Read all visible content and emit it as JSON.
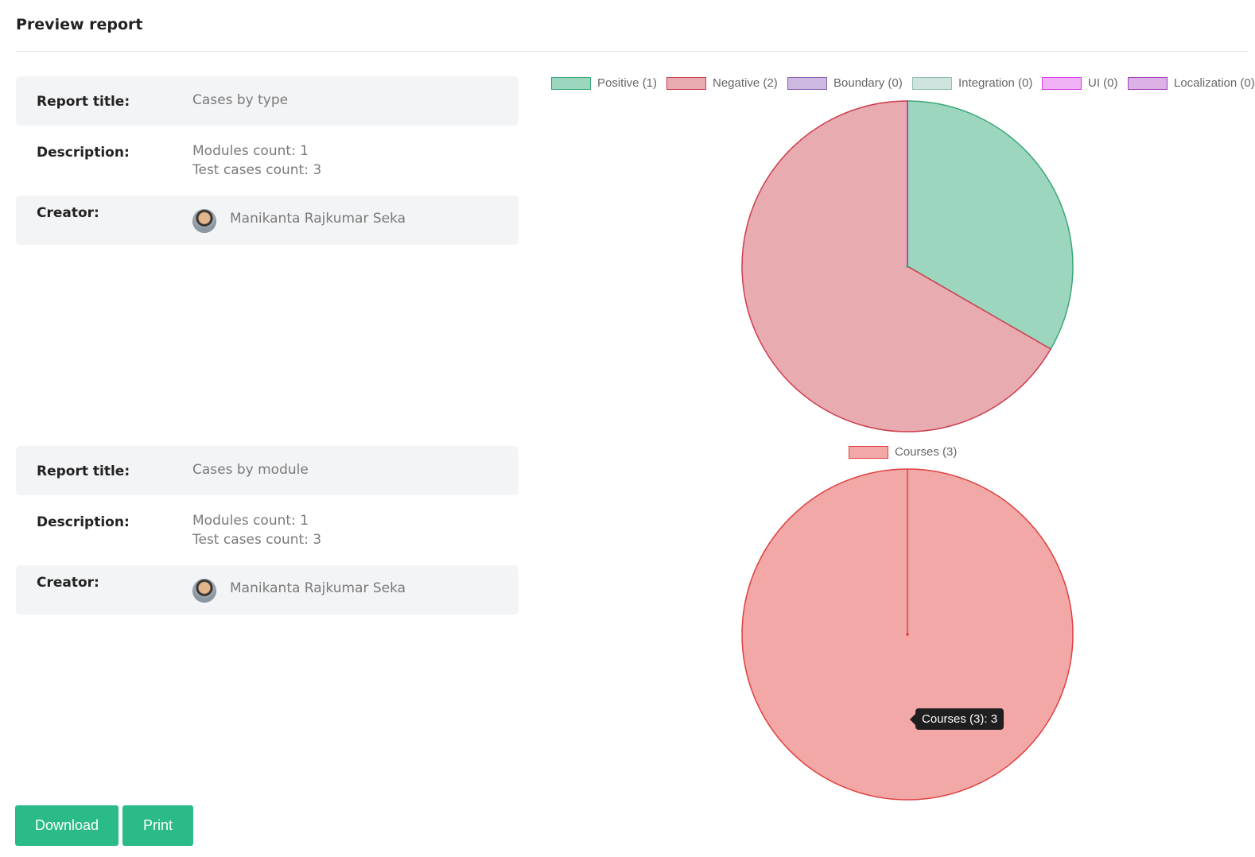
{
  "header": {
    "title": "Preview report"
  },
  "reports": [
    {
      "title_label": "Report title:",
      "title_value": "Cases by type",
      "description_label": "Description:",
      "description_lines": [
        "Modules count: 1",
        "Test cases count: 3"
      ],
      "creator_label": "Creator:",
      "creator_name": "Manikanta Rajkumar Seka"
    },
    {
      "title_label": "Report title:",
      "title_value": "Cases by module",
      "description_label": "Description:",
      "description_lines": [
        "Modules count: 1",
        "Test cases count: 3"
      ],
      "creator_label": "Creator:",
      "creator_name": "Manikanta Rajkumar Seka"
    }
  ],
  "chart_data": [
    {
      "type": "pie",
      "legend": [
        {
          "label": "Positive (1)",
          "value": 1,
          "color": "#9dd6be",
          "border": "#3aa877"
        },
        {
          "label": "Negative (2)",
          "value": 2,
          "color": "#e8abb0",
          "border": "#cc3d4c"
        },
        {
          "label": "Boundary (0)",
          "value": 0,
          "color": "#cdb8df",
          "border": "#8a63b5"
        },
        {
          "label": "Integration (0)",
          "value": 0,
          "color": "#cfe3de",
          "border": "#8fbfb3"
        },
        {
          "label": "UI (0)",
          "value": 0,
          "color": "#f0b1f6",
          "border": "#d63fe5"
        },
        {
          "label": "Localization (0)",
          "value": 0,
          "color": "#dcb1e6",
          "border": "#a343bd"
        }
      ]
    },
    {
      "type": "pie",
      "legend": [
        {
          "label": "Courses (3)",
          "value": 3,
          "color": "#f2a8a6",
          "border": "#df4040"
        }
      ],
      "tooltip": "Courses (3): 3"
    }
  ],
  "actions": {
    "download_label": "Download",
    "print_label": "Print"
  }
}
